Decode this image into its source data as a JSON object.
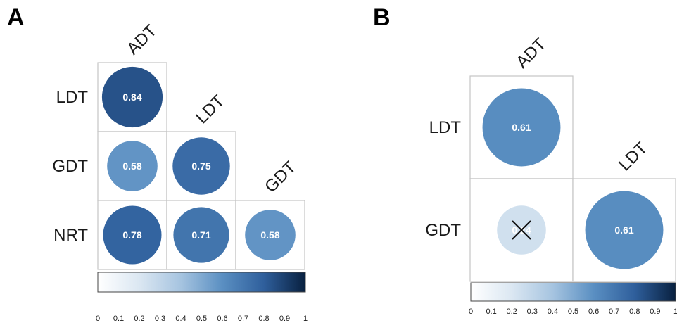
{
  "figure": {
    "panels": [
      "A",
      "B"
    ]
  },
  "colors": {
    "scale_low": "#ffffff",
    "scale_mid": "#5a8fc2",
    "scale_high": "#08203f",
    "cell_border": "#c4c4c4"
  },
  "chart_data": [
    {
      "type": "heatmap",
      "panel": "A",
      "rows": [
        "LDT",
        "GDT",
        "NRT"
      ],
      "columns": [
        "ADT",
        "LDT",
        "GDT"
      ],
      "cells": [
        {
          "row": "LDT",
          "col": "ADT",
          "value": 0.84,
          "label": "0.84"
        },
        {
          "row": "GDT",
          "col": "ADT",
          "value": 0.58,
          "label": "0.58"
        },
        {
          "row": "GDT",
          "col": "LDT",
          "value": 0.75,
          "label": "0.75"
        },
        {
          "row": "NRT",
          "col": "ADT",
          "value": 0.78,
          "label": "0.78"
        },
        {
          "row": "NRT",
          "col": "LDT",
          "value": 0.71,
          "label": "0.71"
        },
        {
          "row": "NRT",
          "col": "GDT",
          "value": 0.58,
          "label": "0.58"
        }
      ],
      "colorbar": {
        "range": [
          0,
          1
        ],
        "ticks": [
          "0",
          "0.1",
          "0.2",
          "0.3",
          "0.4",
          "0.5",
          "0.6",
          "0.7",
          "0.8",
          "0.9",
          "1"
        ]
      }
    },
    {
      "type": "heatmap",
      "panel": "B",
      "rows": [
        "LDT",
        "GDT"
      ],
      "columns": [
        "ADT",
        "LDT"
      ],
      "cells": [
        {
          "row": "LDT",
          "col": "ADT",
          "value": 0.61,
          "label": "0.61"
        },
        {
          "row": "GDT",
          "col": "ADT",
          "value": 0.24,
          "label": "0.24",
          "crossed": true
        },
        {
          "row": "GDT",
          "col": "LDT",
          "value": 0.61,
          "label": "0.61"
        }
      ],
      "colorbar": {
        "range": [
          0,
          1
        ],
        "ticks": [
          "0",
          "0.1",
          "0.2",
          "0.3",
          "0.4",
          "0.5",
          "0.6",
          "0.7",
          "0.8",
          "0.9",
          "1"
        ]
      }
    }
  ]
}
